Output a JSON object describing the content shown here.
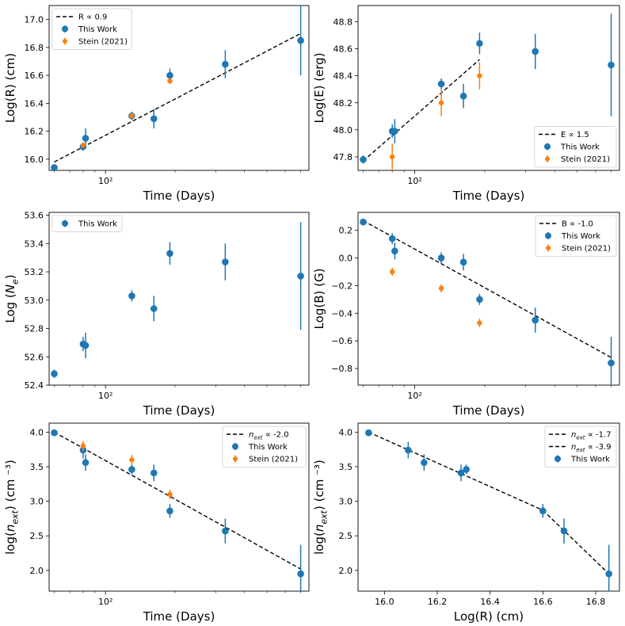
{
  "figure": {
    "panels": 6,
    "layout": "3 rows x 2 columns"
  },
  "chart_data": [
    {
      "id": "p1",
      "type": "scatter",
      "xscale": "log",
      "xlabel": "Time (Days)",
      "ylabel": "Log(R) (cm)",
      "xlim": [
        57,
        760
      ],
      "ylim": [
        15.92,
        17.1
      ],
      "yticks": [
        16.0,
        16.2,
        16.4,
        16.6,
        16.8,
        17.0
      ],
      "ytick_labels": [
        "16.0",
        "16.2",
        "16.4",
        "16.6",
        "16.8",
        "17.0"
      ],
      "xticks": [
        100
      ],
      "xtick_labels": [
        "10²"
      ],
      "legend_position": "top-left",
      "series": [
        {
          "name": "R ∝ 0.9",
          "kind": "line",
          "color": "#000000",
          "points": [
            {
              "x": 60,
              "y": 15.98
            },
            {
              "x": 700,
              "y": 16.9
            }
          ]
        },
        {
          "name": "This Work",
          "kind": "points",
          "color": "#1f77b4",
          "points": [
            {
              "x": 60,
              "y": 15.94,
              "err": 0.02
            },
            {
              "x": 80,
              "y": 16.09,
              "err": 0.03
            },
            {
              "x": 82,
              "y": 16.15,
              "err": 0.07
            },
            {
              "x": 130,
              "y": 16.31,
              "err": 0.03
            },
            {
              "x": 162,
              "y": 16.29,
              "err": 0.07
            },
            {
              "x": 190,
              "y": 16.6,
              "err": 0.05
            },
            {
              "x": 330,
              "y": 16.68,
              "err": 0.1
            },
            {
              "x": 700,
              "y": 16.85,
              "err": 0.25
            }
          ]
        },
        {
          "name": "Stein (2021)",
          "kind": "points",
          "color": "#ff7f0e",
          "points": [
            {
              "x": 80,
              "y": 16.1,
              "err": 0.02
            },
            {
              "x": 130,
              "y": 16.31,
              "err": 0.02
            },
            {
              "x": 190,
              "y": 16.56,
              "err": 0.02
            }
          ]
        }
      ]
    },
    {
      "id": "p2",
      "type": "scatter",
      "xscale": "log",
      "xlabel": "Time (Days)",
      "ylabel": "Log(E) (erg)",
      "xlim": [
        57,
        760
      ],
      "ylim": [
        47.7,
        48.92
      ],
      "yticks": [
        47.8,
        48.0,
        48.2,
        48.4,
        48.6,
        48.8
      ],
      "ytick_labels": [
        "47.8",
        "48.0",
        "48.2",
        "48.4",
        "48.6",
        "48.8"
      ],
      "xticks": [
        100
      ],
      "xtick_labels": [
        "10²"
      ],
      "legend_position": "bottom-right",
      "series": [
        {
          "name": "E ∝ 1.5",
          "kind": "line",
          "color": "#000000",
          "points": [
            {
              "x": 60,
              "y": 47.77
            },
            {
              "x": 190,
              "y": 48.52
            }
          ]
        },
        {
          "name": "This Work",
          "kind": "points",
          "color": "#1f77b4",
          "points": [
            {
              "x": 60,
              "y": 47.78,
              "err": 0.03
            },
            {
              "x": 80,
              "y": 47.99,
              "err": 0.05
            },
            {
              "x": 82,
              "y": 47.99,
              "err": 0.09
            },
            {
              "x": 130,
              "y": 48.34,
              "err": 0.04
            },
            {
              "x": 162,
              "y": 48.25,
              "err": 0.09
            },
            {
              "x": 190,
              "y": 48.64,
              "err": 0.08
            },
            {
              "x": 330,
              "y": 48.58,
              "err": 0.13
            },
            {
              "x": 700,
              "y": 48.48,
              "err": 0.38
            }
          ]
        },
        {
          "name": "Stein (2021)",
          "kind": "points",
          "color": "#ff7f0e",
          "points": [
            {
              "x": 80,
              "y": 47.8,
              "err": 0.1
            },
            {
              "x": 130,
              "y": 48.2,
              "err": 0.1
            },
            {
              "x": 190,
              "y": 48.4,
              "err": 0.1
            }
          ]
        }
      ]
    },
    {
      "id": "p3",
      "type": "scatter",
      "xscale": "log",
      "xlabel": "Time (Days)",
      "ylabel": "Log (N_e)",
      "xlim": [
        57,
        760
      ],
      "ylim": [
        52.4,
        53.62
      ],
      "yticks": [
        52.4,
        52.6,
        52.8,
        53.0,
        53.2,
        53.4,
        53.6
      ],
      "ytick_labels": [
        "52.4",
        "52.6",
        "52.8",
        "53.0",
        "53.2",
        "53.4",
        "53.6"
      ],
      "xticks": [
        100
      ],
      "xtick_labels": [
        "10²"
      ],
      "legend_position": "top-left",
      "series": [
        {
          "name": "This Work",
          "kind": "points",
          "color": "#1f77b4",
          "points": [
            {
              "x": 60,
              "y": 52.48,
              "err": 0.03
            },
            {
              "x": 80,
              "y": 52.69,
              "err": 0.05
            },
            {
              "x": 82,
              "y": 52.68,
              "err": 0.09
            },
            {
              "x": 130,
              "y": 53.03,
              "err": 0.04
            },
            {
              "x": 162,
              "y": 52.94,
              "err": 0.09
            },
            {
              "x": 190,
              "y": 53.33,
              "err": 0.08
            },
            {
              "x": 330,
              "y": 53.27,
              "err": 0.13
            },
            {
              "x": 700,
              "y": 53.17,
              "err": 0.38
            }
          ]
        }
      ]
    },
    {
      "id": "p4",
      "type": "scatter",
      "xscale": "log",
      "xlabel": "Time (Days)",
      "ylabel": "Log(B) (G)",
      "xlim": [
        57,
        760
      ],
      "ylim": [
        -0.92,
        0.33
      ],
      "yticks": [
        -0.8,
        -0.6,
        -0.4,
        -0.2,
        0.0,
        0.2
      ],
      "ytick_labels": [
        "−0.8",
        "−0.6",
        "−0.4",
        "−0.2",
        "0.0",
        "0.2"
      ],
      "xticks": [
        100
      ],
      "xtick_labels": [
        "10²"
      ],
      "legend_position": "top-right",
      "series": [
        {
          "name": "B ∝ -1.0",
          "kind": "line",
          "color": "#000000",
          "points": [
            {
              "x": 60,
              "y": 0.27
            },
            {
              "x": 700,
              "y": -0.72
            }
          ]
        },
        {
          "name": "This Work",
          "kind": "points",
          "color": "#1f77b4",
          "points": [
            {
              "x": 60,
              "y": 0.26,
              "err": 0.02
            },
            {
              "x": 80,
              "y": 0.14,
              "err": 0.04
            },
            {
              "x": 82,
              "y": 0.05,
              "err": 0.06
            },
            {
              "x": 130,
              "y": 0.0,
              "err": 0.04
            },
            {
              "x": 162,
              "y": -0.03,
              "err": 0.06
            },
            {
              "x": 190,
              "y": -0.3,
              "err": 0.04
            },
            {
              "x": 330,
              "y": -0.45,
              "err": 0.09
            },
            {
              "x": 700,
              "y": -0.76,
              "err": 0.19
            }
          ]
        },
        {
          "name": "Stein (2021)",
          "kind": "points",
          "color": "#ff7f0e",
          "points": [
            {
              "x": 80,
              "y": -0.1,
              "err": 0.03
            },
            {
              "x": 130,
              "y": -0.22,
              "err": 0.03
            },
            {
              "x": 190,
              "y": -0.47,
              "err": 0.03
            }
          ]
        }
      ]
    },
    {
      "id": "p5",
      "type": "scatter",
      "xscale": "log",
      "xlabel": "Time (Days)",
      "ylabel": "log(n_ext) (cm ⁻³)",
      "xlim": [
        57,
        760
      ],
      "ylim": [
        1.7,
        4.13
      ],
      "yticks": [
        2.0,
        2.5,
        3.0,
        3.5,
        4.0
      ],
      "ytick_labels": [
        "2.0",
        "2.5",
        "3.0",
        "3.5",
        "4.0"
      ],
      "xticks": [
        100
      ],
      "xtick_labels": [
        "10²"
      ],
      "legend_position": "top-right",
      "series": [
        {
          "name": "n_ext ∝ -2.0",
          "kind": "line",
          "color": "#000000",
          "points": [
            {
              "x": 60,
              "y": 4.0
            },
            {
              "x": 700,
              "y": 2.02
            }
          ]
        },
        {
          "name": "This Work",
          "kind": "points",
          "color": "#1f77b4",
          "points": [
            {
              "x": 60,
              "y": 3.99,
              "err": 0.04
            },
            {
              "x": 80,
              "y": 3.74,
              "err": 0.12
            },
            {
              "x": 82,
              "y": 3.56,
              "err": 0.12
            },
            {
              "x": 130,
              "y": 3.46,
              "err": 0.07
            },
            {
              "x": 162,
              "y": 3.41,
              "err": 0.12
            },
            {
              "x": 190,
              "y": 2.86,
              "err": 0.1
            },
            {
              "x": 330,
              "y": 2.57,
              "err": 0.18
            },
            {
              "x": 700,
              "y": 1.95,
              "err": 0.42
            }
          ]
        },
        {
          "name": "Stein (2021)",
          "kind": "points",
          "color": "#ff7f0e",
          "points": [
            {
              "x": 80,
              "y": 3.8,
              "err": 0.07
            },
            {
              "x": 130,
              "y": 3.6,
              "err": 0.07
            },
            {
              "x": 190,
              "y": 3.1,
              "err": 0.07
            }
          ]
        }
      ]
    },
    {
      "id": "p6",
      "type": "scatter",
      "xscale": "linear",
      "xlabel": "Log(R) (cm)",
      "ylabel": "log(n_ext) (cm ⁻³)",
      "xlim": [
        15.9,
        16.89
      ],
      "ylim": [
        1.7,
        4.13
      ],
      "yticks": [
        2.0,
        2.5,
        3.0,
        3.5,
        4.0
      ],
      "ytick_labels": [
        "2.0",
        "2.5",
        "3.0",
        "3.5",
        "4.0"
      ],
      "xticks": [
        16.0,
        16.2,
        16.4,
        16.6,
        16.8
      ],
      "xtick_labels": [
        "16.0",
        "16.2",
        "16.4",
        "16.6",
        "16.8"
      ],
      "legend_position": "top-right",
      "series": [
        {
          "name": "n_ext ∝ -1.7",
          "kind": "line",
          "color": "#000000",
          "points": [
            {
              "x": 15.94,
              "y": 4.0
            },
            {
              "x": 16.6,
              "y": 2.87
            }
          ]
        },
        {
          "name": "n_ext ∝ -3.9",
          "kind": "line",
          "color": "#000000",
          "points": [
            {
              "x": 16.6,
              "y": 2.87
            },
            {
              "x": 16.85,
              "y": 1.95
            }
          ]
        },
        {
          "name": "This Work",
          "kind": "points",
          "color": "#1f77b4",
          "points": [
            {
              "x": 15.94,
              "y": 3.99,
              "err": 0.04
            },
            {
              "x": 16.09,
              "y": 3.74,
              "err": 0.12
            },
            {
              "x": 16.15,
              "y": 3.56,
              "err": 0.12
            },
            {
              "x": 16.29,
              "y": 3.41,
              "err": 0.12
            },
            {
              "x": 16.31,
              "y": 3.46,
              "err": 0.07
            },
            {
              "x": 16.6,
              "y": 2.86,
              "err": 0.1
            },
            {
              "x": 16.68,
              "y": 2.57,
              "err": 0.18
            },
            {
              "x": 16.85,
              "y": 1.95,
              "err": 0.42
            }
          ]
        }
      ]
    }
  ]
}
